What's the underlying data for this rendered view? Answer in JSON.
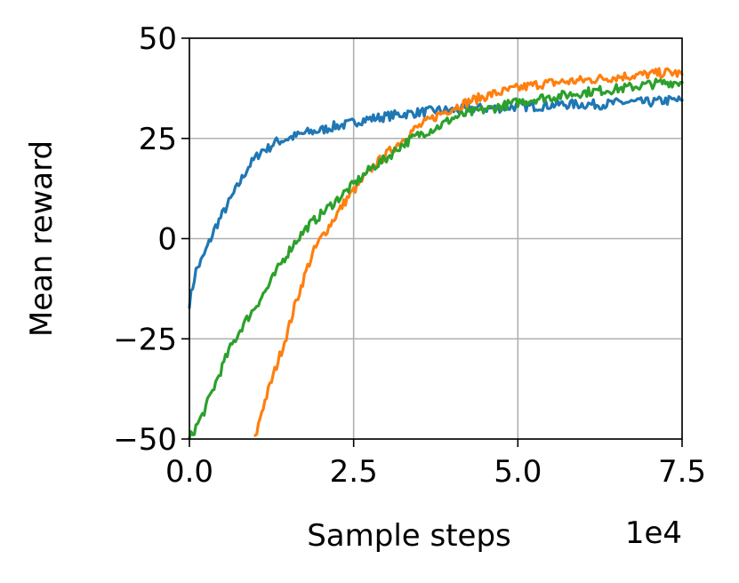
{
  "chart_data": {
    "type": "line",
    "title": "",
    "xlabel": "Sample steps",
    "ylabel": "Mean reward",
    "x_offset_label": "1e4",
    "xlim": [
      0,
      7.5
    ],
    "ylim": [
      -50,
      50
    ],
    "x_ticks": [
      0.0,
      2.5,
      5.0,
      7.5
    ],
    "x_tick_labels": [
      "0.0",
      "2.5",
      "5.0",
      "7.5"
    ],
    "y_ticks": [
      -50,
      -25,
      0,
      25,
      50
    ],
    "y_tick_labels": [
      "−50",
      "−25",
      "0",
      "25",
      "50"
    ],
    "grid": true,
    "legend": "none",
    "series": [
      {
        "color": "#1f77b4",
        "x": [
          0.0,
          0.1,
          0.2,
          0.3,
          0.4,
          0.5,
          0.6,
          0.7,
          0.8,
          0.9,
          1.0,
          1.1,
          1.2,
          1.3,
          1.4,
          1.5,
          1.6,
          1.8,
          2.0,
          2.2,
          2.4,
          2.6,
          2.8,
          3.0,
          3.2,
          3.5,
          3.8,
          4.0,
          4.3,
          4.6,
          5.0,
          5.3,
          5.6,
          6.0,
          6.3,
          6.6,
          7.0,
          7.3,
          7.5
        ],
        "y": [
          -16,
          -8,
          -5,
          -1,
          3,
          6,
          9,
          12,
          15,
          18,
          20,
          22,
          22.5,
          24,
          24.5,
          25,
          25.5,
          26.5,
          27,
          28,
          28.5,
          29.5,
          30,
          30.5,
          31,
          31.5,
          32,
          32,
          32.5,
          32.5,
          33,
          33,
          33.5,
          33.5,
          33.5,
          34,
          34,
          34.5,
          34.5
        ]
      },
      {
        "color": "#ff7f0e",
        "x": [
          1.0,
          1.1,
          1.2,
          1.3,
          1.4,
          1.5,
          1.6,
          1.7,
          1.8,
          1.9,
          2.0,
          2.2,
          2.4,
          2.6,
          2.8,
          3.0,
          3.2,
          3.4,
          3.6,
          3.8,
          4.0,
          4.3,
          4.6,
          5.0,
          5.3,
          5.6,
          6.0,
          6.3,
          6.6,
          7.0,
          7.3,
          7.5
        ],
        "y": [
          -50,
          -43,
          -38,
          -33,
          -28,
          -23,
          -17,
          -12,
          -7,
          -3,
          0,
          5,
          10,
          14,
          18,
          21,
          24,
          27,
          29,
          31,
          32.5,
          34.5,
          36,
          37.5,
          38.5,
          39,
          39.5,
          40,
          40.5,
          41,
          41.5,
          41
        ]
      },
      {
        "color": "#2ca02c",
        "x": [
          0.0,
          0.2,
          0.4,
          0.6,
          0.8,
          1.0,
          1.2,
          1.4,
          1.6,
          1.8,
          2.0,
          2.2,
          2.4,
          2.6,
          2.8,
          3.0,
          3.2,
          3.5,
          3.8,
          4.0,
          4.3,
          4.6,
          5.0,
          5.3,
          5.6,
          6.0,
          6.3,
          6.6,
          7.0,
          7.3,
          7.5
        ],
        "y": [
          -50,
          -44,
          -36,
          -28,
          -22,
          -17,
          -12,
          -6,
          -1,
          3,
          6,
          9,
          12,
          15,
          18,
          20,
          23,
          26,
          28,
          30,
          31.5,
          32.5,
          34,
          35,
          35.5,
          36.5,
          37,
          37.5,
          38.5,
          39,
          39
        ]
      }
    ]
  }
}
